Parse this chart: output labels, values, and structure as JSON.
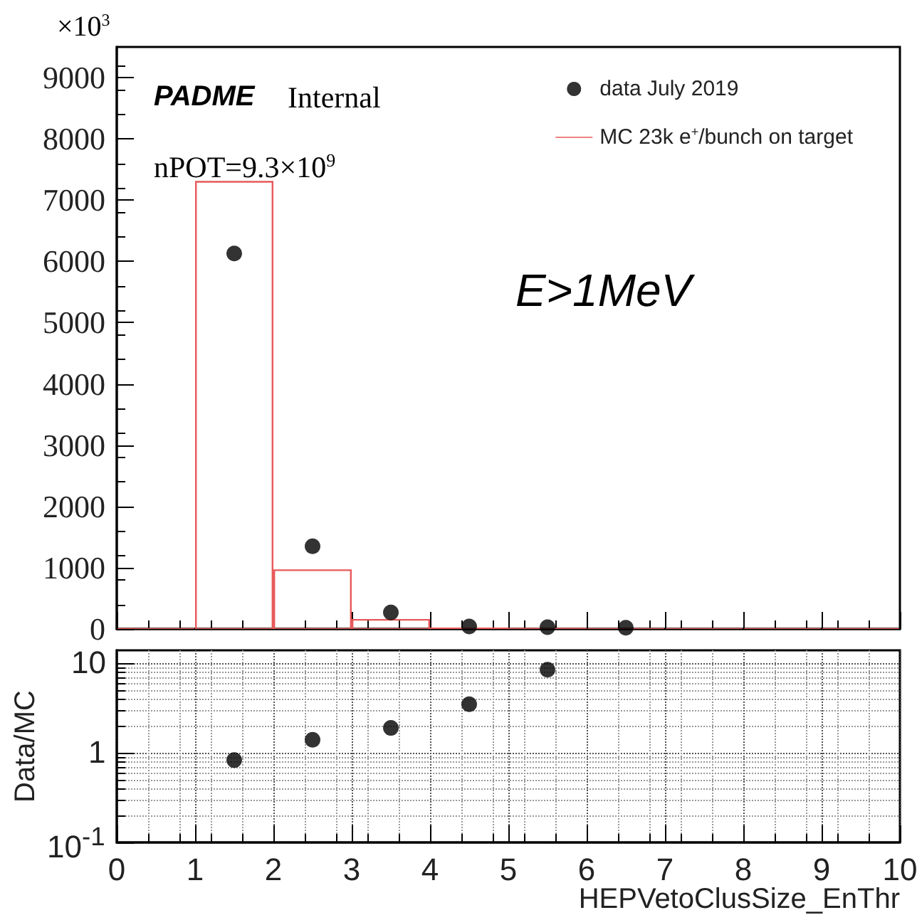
{
  "chart_data": [
    {
      "type": "histogram",
      "bins": [
        0,
        1,
        2,
        3,
        4,
        5,
        6,
        7,
        8,
        9,
        10
      ],
      "legend": "top right",
      "series": [
        {
          "type": "scatter",
          "name": "data July 2019",
          "color": "#000000",
          "x": [
            1.5,
            2.5,
            3.5,
            4.5,
            5.5,
            6.5
          ],
          "values": [
            6130,
            1350,
            270,
            40,
            30,
            20
          ]
        },
        {
          "type": "histogram",
          "name": "MC 23k e$^{+}$/bunch on target",
          "color": "#e8595a",
          "values": [
            0,
            7300,
            960,
            150,
            10,
            4,
            0,
            0,
            0,
            0
          ]
        }
      ],
      "xlim": [
        0,
        10
      ],
      "xticks": [
        0,
        1,
        2,
        3,
        4,
        5,
        6,
        7,
        8,
        9,
        10
      ],
      "ylim": [
        0,
        9500
      ],
      "yticks": [
        0,
        1000,
        2000,
        3000,
        4000,
        5000,
        6000,
        7000,
        8000,
        9000
      ],
      "tick_labels": "y",
      "marker": "circle",
      "annotations": [
        "×10$^{3}$",
        "PADME",
        "Internal",
        "nPOT=9.3×10$^{9}$",
        "E>1MeV"
      ]
    },
    {
      "type": "scatter",
      "x": [
        1.5,
        2.5,
        3.5,
        4.5,
        5.5
      ],
      "values": [
        0.83,
        1.4,
        1.9,
        3.5,
        8.5
      ],
      "color": "#000000",
      "marker": "circle",
      "xlim": [
        0,
        10
      ],
      "xticks": [
        0,
        1,
        2,
        3,
        4,
        5,
        6,
        7,
        8,
        9,
        10
      ],
      "ylim": [
        0.1,
        14
      ],
      "yticks": [
        {
          "value": 0.1,
          "label": "10$^{-1}$"
        },
        1,
        10
      ],
      "log": "y",
      "grid": true,
      "xlabel": "HEPVetoClusSize_EnThr",
      "ylabel": "Data/MC"
    }
  ]
}
